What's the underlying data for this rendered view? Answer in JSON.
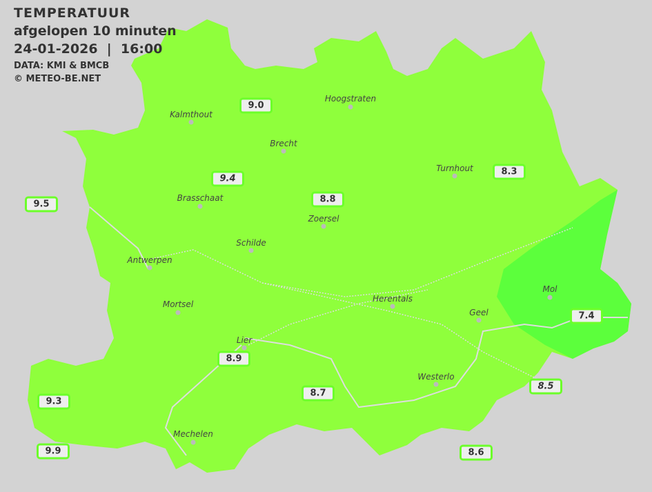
{
  "header": {
    "title": "TEMPERATUUR",
    "subtitle": "afgelopen 10 minuten",
    "datetime": "24-01-2026  |  16:00",
    "source": "DATA: KMI & BMCB",
    "copyright": "© METEO-BE.NET"
  },
  "colors": {
    "background": "#d3d3d3",
    "zone_9": "#8fff3c",
    "zone_7": "#5cff3c",
    "label_border": "#6cff2a"
  },
  "cities": [
    {
      "name": "Kalmthout"
    },
    {
      "name": "Hoogstraten"
    },
    {
      "name": "Brecht"
    },
    {
      "name": "Turnhout"
    },
    {
      "name": "Brasschaat"
    },
    {
      "name": "Zoersel"
    },
    {
      "name": "Schilde"
    },
    {
      "name": "Antwerpen"
    },
    {
      "name": "Mortsel"
    },
    {
      "name": "Herentals"
    },
    {
      "name": "Mol"
    },
    {
      "name": "Geel"
    },
    {
      "name": "Lier"
    },
    {
      "name": "Westerlo"
    },
    {
      "name": "Mechelen"
    }
  ],
  "stations": [
    {
      "value": "9.0"
    },
    {
      "value": "9.4"
    },
    {
      "value": "8.3"
    },
    {
      "value": "8.8"
    },
    {
      "value": "9.5"
    },
    {
      "value": "7.4"
    },
    {
      "value": "8.9"
    },
    {
      "value": "8.5"
    },
    {
      "value": "9.3"
    },
    {
      "value": "8.7"
    },
    {
      "value": "9.9"
    },
    {
      "value": "8.6"
    }
  ]
}
